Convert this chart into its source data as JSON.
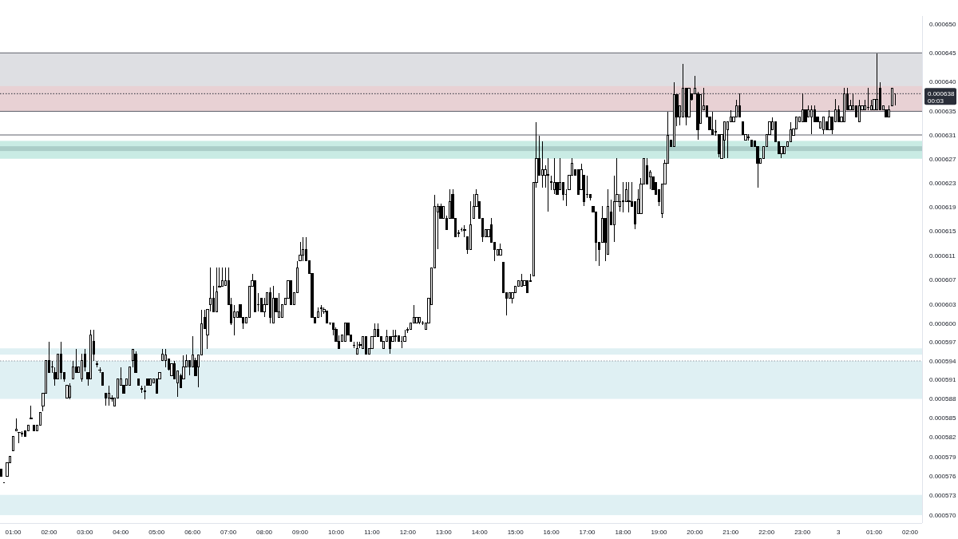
{
  "chart_data": {
    "type": "candlestick",
    "color": "#000000",
    "log": true,
    "xlim": [
      "--01-02T00:38",
      "--01-03T02:20"
    ],
    "ylim": [
      0.0005688,
      0.0006514
    ],
    "xticks": [
      {
        "value": "--01-02T01:00",
        "label": "01:00"
      },
      {
        "value": "--01-02T02:00",
        "label": "02:00"
      },
      {
        "value": "--01-02T03:00",
        "label": "03:00"
      },
      {
        "value": "--01-02T04:00",
        "label": "04:00"
      },
      {
        "value": "--01-02T05:00",
        "label": "05:00"
      },
      {
        "value": "--01-02T06:00",
        "label": "06:00"
      },
      {
        "value": "--01-02T07:00",
        "label": "07:00"
      },
      {
        "value": "--01-02T08:00",
        "label": "08:00"
      },
      {
        "value": "--01-02T09:00",
        "label": "09:00"
      },
      {
        "value": "--01-02T10:00",
        "label": "10:00"
      },
      {
        "value": "--01-02T11:00",
        "label": "11:00"
      },
      {
        "value": "--01-02T12:00",
        "label": "12:00"
      },
      {
        "value": "--01-02T13:00",
        "label": "13:00"
      },
      {
        "value": "--01-02T14:00",
        "label": "14:00"
      },
      {
        "value": "--01-02T15:00",
        "label": "15:00"
      },
      {
        "value": "--01-02T16:00",
        "label": "16:00"
      },
      {
        "value": "--01-02T17:00",
        "label": "17:00"
      },
      {
        "value": "--01-02T18:00",
        "label": "18:00"
      },
      {
        "value": "--01-02T19:00",
        "label": "19:00"
      },
      {
        "value": "--01-02T20:00",
        "label": "20:00"
      },
      {
        "value": "--01-02T21:00",
        "label": "21:00"
      },
      {
        "value": "--01-02T22:00",
        "label": "22:00"
      },
      {
        "value": "--01-02T23:00",
        "label": "23:00"
      },
      {
        "value": "--01-03T00:00",
        "label": "3"
      },
      {
        "value": "--01-03T01:00",
        "label": "01:00"
      },
      {
        "value": "--01-03T02:00",
        "label": "02:00"
      }
    ],
    "yticks": [
      {
        "value": 0.00065,
        "label": "0.000650"
      },
      0.000645,
      {
        "value": 0.00064,
        "label": "0.000640"
      },
      0.000635,
      0.000631,
      0.000627,
      0.000623,
      0.000619,
      0.000615,
      0.000611,
      0.000607,
      0.000603,
      {
        "value": 0.0006,
        "label": "0.000600"
      },
      0.000597,
      0.000594,
      0.000591,
      0.000588,
      0.000585,
      0.000582,
      0.000579,
      0.000576,
      0.000573,
      {
        "value": 0.00057,
        "label": "0.000570"
      }
    ],
    "bands": [
      {
        "axis": "y",
        "from": 0.000635,
        "to": 0.000645,
        "color": "#dedfe3"
      },
      {
        "axis": "y",
        "from": 0.000595,
        "to": 0.000596,
        "color": "#dff0f3"
      },
      {
        "axis": "y",
        "from": 0.000588,
        "to": 0.000594,
        "color": "#dff0f3"
      },
      {
        "axis": "y",
        "from": 0.00057,
        "to": 0.0005731,
        "color": "#dff0f3"
      },
      {
        "axis": "y",
        "from": 0.000635,
        "to": 0.0006393,
        "color": "#e8d1d4"
      },
      {
        "axis": "y",
        "from": 0.000627,
        "to": 0.00063,
        "color": "#c9ebe4"
      },
      {
        "axis": "y",
        "from": 0.0006283,
        "to": 0.0006291,
        "color": "#abcdc8"
      }
    ],
    "ref_lines": [
      {
        "axis": "y",
        "value": 0.000645,
        "color": "#5d606b"
      },
      {
        "axis": "y",
        "value": 0.000635,
        "color": "#5d606b"
      },
      {
        "axis": "y",
        "value": 0.000631,
        "color": "#5d606b"
      },
      {
        "axis": "y",
        "value": 0.000638,
        "label": "0.000638",
        "color": "#2a2e39",
        "line_style": "dotted"
      },
      {
        "axis": "y",
        "value": 0.000594,
        "color": "#9598a1",
        "line_style": "dotted"
      }
    ],
    "annotations": [
      "00:03"
    ],
    "x": [
      "--01-02T00:40",
      "--01-02T00:45",
      "--01-02T00:50",
      "--01-02T00:55",
      "--01-02T01:00",
      "--01-02T01:05",
      "--01-02T01:10",
      "--01-02T01:15",
      "--01-02T01:20",
      "--01-02T01:25",
      "--01-02T01:30",
      "--01-02T01:35",
      "--01-02T01:40",
      "--01-02T01:45",
      "--01-02T01:50",
      "--01-02T01:55",
      "--01-02T02:00",
      "--01-02T02:05",
      "--01-02T02:10",
      "--01-02T02:15",
      "--01-02T02:20",
      "--01-02T02:25",
      "--01-02T02:30",
      "--01-02T02:35",
      "--01-02T02:40",
      "--01-02T02:45",
      "--01-02T02:50",
      "--01-02T02:55",
      "--01-02T03:00",
      "--01-02T03:05",
      "--01-02T03:10",
      "--01-02T03:15",
      "--01-02T03:20",
      "--01-02T03:25",
      "--01-02T03:30",
      "--01-02T03:35",
      "--01-02T03:40",
      "--01-02T03:45",
      "--01-02T03:50",
      "--01-02T03:55",
      "--01-02T04:00",
      "--01-02T04:05",
      "--01-02T04:10",
      "--01-02T04:15",
      "--01-02T04:20",
      "--01-02T04:25",
      "--01-02T04:30",
      "--01-02T04:35",
      "--01-02T04:40",
      "--01-02T04:45",
      "--01-02T04:50",
      "--01-02T04:55",
      "--01-02T05:00",
      "--01-02T05:05",
      "--01-02T05:10",
      "--01-02T05:15",
      "--01-02T05:20",
      "--01-02T05:25",
      "--01-02T05:30",
      "--01-02T05:35",
      "--01-02T05:40",
      "--01-02T05:45",
      "--01-02T05:50",
      "--01-02T05:55",
      "--01-02T06:00",
      "--01-02T06:05",
      "--01-02T06:10",
      "--01-02T06:15",
      "--01-02T06:20",
      "--01-02T06:25",
      "--01-02T06:30",
      "--01-02T06:35",
      "--01-02T06:40",
      "--01-02T06:45",
      "--01-02T06:50",
      "--01-02T06:55",
      "--01-02T07:00",
      "--01-02T07:05",
      "--01-02T07:10",
      "--01-02T07:15",
      "--01-02T07:20",
      "--01-02T07:25",
      "--01-02T07:30",
      "--01-02T07:35",
      "--01-02T07:40",
      "--01-02T07:45",
      "--01-02T07:50",
      "--01-02T07:55",
      "--01-02T08:00",
      "--01-02T08:05",
      "--01-02T08:10",
      "--01-02T08:15",
      "--01-02T08:20",
      "--01-02T08:25",
      "--01-02T08:30",
      "--01-02T08:35",
      "--01-02T08:40",
      "--01-02T08:45",
      "--01-02T08:50",
      "--01-02T08:55",
      "--01-02T09:00",
      "--01-02T09:05",
      "--01-02T09:10",
      "--01-02T09:15",
      "--01-02T09:20",
      "--01-02T09:25",
      "--01-02T09:30",
      "--01-02T09:35",
      "--01-02T09:40",
      "--01-02T09:45",
      "--01-02T09:50",
      "--01-02T09:55",
      "--01-02T10:00",
      "--01-02T10:05",
      "--01-02T10:10",
      "--01-02T10:15",
      "--01-02T10:20",
      "--01-02T10:25",
      "--01-02T10:30",
      "--01-02T10:35",
      "--01-02T10:40",
      "--01-02T10:45",
      "--01-02T10:50",
      "--01-02T10:55",
      "--01-02T11:00",
      "--01-02T11:05",
      "--01-02T11:10",
      "--01-02T11:15",
      "--01-02T11:20",
      "--01-02T11:25",
      "--01-02T11:30",
      "--01-02T11:35",
      "--01-02T11:40",
      "--01-02T11:45",
      "--01-02T11:50",
      "--01-02T11:55",
      "--01-02T12:00",
      "--01-02T12:05",
      "--01-02T12:10",
      "--01-02T12:15",
      "--01-02T12:20",
      "--01-02T12:25",
      "--01-02T12:30",
      "--01-02T12:35",
      "--01-02T12:40",
      "--01-02T12:45",
      "--01-02T12:50",
      "--01-02T12:55",
      "--01-02T13:00",
      "--01-02T13:05",
      "--01-02T13:10",
      "--01-02T13:15",
      "--01-02T13:20",
      "--01-02T13:25",
      "--01-02T13:30",
      "--01-02T13:35",
      "--01-02T13:40",
      "--01-02T13:45",
      "--01-02T13:50",
      "--01-02T13:55",
      "--01-02T14:00",
      "--01-02T14:05",
      "--01-02T14:10",
      "--01-02T14:15",
      "--01-02T14:20",
      "--01-02T14:25",
      "--01-02T14:30",
      "--01-02T14:35",
      "--01-02T14:40",
      "--01-02T14:45",
      "--01-02T14:50",
      "--01-02T14:55",
      "--01-02T15:00",
      "--01-02T15:05",
      "--01-02T15:10",
      "--01-02T15:15",
      "--01-02T15:20",
      "--01-02T15:25",
      "--01-02T15:30",
      "--01-02T15:35",
      "--01-02T15:40",
      "--01-02T15:45",
      "--01-02T15:50",
      "--01-02T15:55",
      "--01-02T16:00",
      "--01-02T16:05",
      "--01-02T16:10",
      "--01-02T16:15",
      "--01-02T16:20",
      "--01-02T16:25",
      "--01-02T16:30",
      "--01-02T16:35",
      "--01-02T16:40",
      "--01-02T16:45",
      "--01-02T16:50",
      "--01-02T16:55",
      "--01-02T17:00",
      "--01-02T17:05",
      "--01-02T17:10",
      "--01-02T17:15",
      "--01-02T17:20",
      "--01-02T17:25",
      "--01-02T17:30",
      "--01-02T17:35",
      "--01-02T17:40",
      "--01-02T17:45",
      "--01-02T17:50",
      "--01-02T17:55",
      "--01-02T18:00",
      "--01-02T18:05",
      "--01-02T18:10",
      "--01-02T18:15",
      "--01-02T18:20",
      "--01-02T18:25",
      "--01-02T18:30",
      "--01-02T18:35",
      "--01-02T18:40",
      "--01-02T18:45",
      "--01-02T18:50",
      "--01-02T18:55",
      "--01-02T19:00",
      "--01-02T19:05",
      "--01-02T19:10",
      "--01-02T19:15",
      "--01-02T19:20",
      "--01-02T19:25",
      "--01-02T19:30",
      "--01-02T19:35",
      "--01-02T19:40",
      "--01-02T19:45",
      "--01-02T19:50",
      "--01-02T19:55",
      "--01-02T20:00",
      "--01-02T20:05",
      "--01-02T20:10",
      "--01-02T20:15",
      "--01-02T20:20",
      "--01-02T20:25",
      "--01-02T20:30",
      "--01-02T20:35",
      "--01-02T20:40",
      "--01-02T20:45",
      "--01-02T20:50",
      "--01-02T20:55",
      "--01-02T21:00",
      "--01-02T21:05",
      "--01-02T21:10",
      "--01-02T21:15",
      "--01-02T21:20",
      "--01-02T21:25",
      "--01-02T21:30",
      "--01-02T21:35",
      "--01-02T21:40",
      "--01-02T21:45",
      "--01-02T21:50",
      "--01-02T21:55",
      "--01-02T22:00",
      "--01-02T22:05",
      "--01-02T22:10",
      "--01-02T22:15",
      "--01-02T22:20",
      "--01-02T22:25",
      "--01-02T22:30",
      "--01-02T22:35",
      "--01-02T22:40",
      "--01-02T22:45",
      "--01-02T22:50",
      "--01-02T22:55",
      "--01-02T23:00",
      "--01-02T23:05",
      "--01-02T23:10",
      "--01-02T23:15",
      "--01-02T23:20",
      "--01-02T23:25",
      "--01-02T23:30",
      "--01-02T23:35",
      "--01-02T23:40",
      "--01-02T23:45",
      "--01-02T23:50",
      "--01-02T23:55",
      "--01-03T00:00",
      "--01-03T00:05",
      "--01-03T00:10",
      "--01-03T00:15",
      "--01-03T00:20",
      "--01-03T00:25",
      "--01-03T00:30",
      "--01-03T00:35",
      "--01-03T00:40",
      "--01-03T00:45",
      "--01-03T00:50",
      "--01-03T00:55",
      "--01-03T01:00",
      "--01-03T01:05",
      "--01-03T01:10",
      "--01-03T01:15",
      "--01-03T01:20",
      "--01-03T01:25",
      "--01-03T01:30",
      "--01-03T01:35"
    ],
    "ohlc": [
      [
        0.000577,
        0.000577,
        0.000576,
        0.000576
      ],
      [
        0.000575,
        0.000575,
        0.000575,
        0.000575
      ],
      [
        0.000576,
        0.000578,
        0.000576,
        0.000578
      ],
      [
        0.000578,
        0.000579,
        0.000578,
        0.000579
      ],
      [
        0.0005799,
        0.0005821,
        0.0005799,
        0.0005821
      ],
      [
        0.000583,
        0.0005849,
        0.000583,
        0.0005833
      ],
      [
        0.0005827,
        0.0005828,
        0.0005811,
        0.0005828
      ],
      [
        0.0005826,
        0.000583,
        0.0005821,
        0.0005825
      ],
      [
        0.000583,
        0.000583,
        0.0005821,
        0.0005821
      ],
      [
        0.000583,
        0.0005839,
        0.000583,
        0.0005839
      ],
      [
        0.0005849,
        0.0005869,
        0.0005849,
        0.000585
      ],
      [
        0.0005839,
        0.0005839,
        0.000583,
        0.000583
      ],
      [
        0.000583,
        0.0005839,
        0.000583,
        0.0005839
      ],
      [
        0.0005839,
        0.0005859,
        0.0005839,
        0.0005859
      ],
      [
        0.0005869,
        0.0005889,
        0.0005861,
        0.0005889
      ],
      [
        0.0005889,
        0.000594,
        0.0005889,
        0.000594
      ],
      [
        0.000594,
        0.0005971,
        0.0005921,
        0.0005921
      ],
      [
        0.000593,
        0.000594,
        0.0005921,
        0.0005931
      ],
      [
        0.0005921,
        0.000593,
        0.0005901,
        0.0005911
      ],
      [
        0.0005911,
        0.0005951,
        0.0005911,
        0.0005951
      ],
      [
        0.0005951,
        0.0005971,
        0.0005911,
        0.0005921
      ],
      [
        0.0005921,
        0.0005921,
        0.0005907,
        0.0005911
      ],
      [
        0.0005881,
        0.0005901,
        0.0005881,
        0.0005901
      ],
      [
        0.0005882,
        0.0005905,
        0.0005879,
        0.00059
      ],
      [
        0.0005911,
        0.000594,
        0.0005911,
        0.000593
      ],
      [
        0.000593,
        0.0005959,
        0.0005921,
        0.0005921
      ],
      [
        0.0005921,
        0.000593,
        0.0005921,
        0.000593
      ],
      [
        0.0005911,
        0.0005951,
        0.0005907,
        0.000594
      ],
      [
        0.0005951,
        0.0005959,
        0.0005924,
        0.000593
      ],
      [
        0.0005921,
        0.0005921,
        0.0005901,
        0.0005911
      ],
      [
        0.0005911,
        0.000599,
        0.0005911,
        0.0005981
      ],
      [
        0.0005971,
        0.000599,
        0.000594,
        0.0005951
      ],
      [
        0.0005935,
        0.000594,
        0.000593,
        0.0005934
      ],
      [
        0.0005926,
        0.000593,
        0.0005921,
        0.0005925
      ],
      [
        0.0005921,
        0.0005921,
        0.0005901,
        0.0005901
      ],
      [
        0.0005889,
        0.0005889,
        0.000587,
        0.0005881
      ],
      [
        0.0005881,
        0.0005901,
        0.000587,
        0.0005889
      ],
      [
        0.0005881,
        0.0005886,
        0.0005876,
        0.000588
      ],
      [
        0.0005869,
        0.0005881,
        0.0005869,
        0.0005881
      ],
      [
        0.0005881,
        0.0005911,
        0.0005881,
        0.0005911
      ],
      [
        0.0005901,
        0.000593,
        0.0005901,
        0.0005911
      ],
      [
        0.0005901,
        0.0005901,
        0.0005889,
        0.0005889
      ],
      [
        0.0005901,
        0.0005911,
        0.0005901,
        0.0005911
      ],
      [
        0.0005901,
        0.000593,
        0.0005901,
        0.000593
      ],
      [
        0.000594,
        0.0005959,
        0.000593,
        0.0005959
      ],
      [
        0.0005951,
        0.0005955,
        0.0005921,
        0.0005921
      ],
      [
        0.0005911,
        0.0005911,
        0.0005901,
        0.0005901
      ],
      [
        0.0005896,
        0.0005901,
        0.0005889,
        0.0005895
      ],
      [
        0.0005892,
        0.0005901,
        0.000588,
        0.0005891
      ],
      [
        0.0005911,
        0.0005911,
        0.0005901,
        0.0005901
      ],
      [
        0.0005901,
        0.0005911,
        0.0005901,
        0.0005911
      ],
      [
        0.0005905,
        0.0005911,
        0.0005905,
        0.0005911
      ],
      [
        0.0005911,
        0.0005911,
        0.0005889,
        0.0005889
      ],
      [
        0.0005911,
        0.0005921,
        0.0005911,
        0.0005921
      ],
      [
        0.000594,
        0.0005959,
        0.000594,
        0.0005951
      ],
      [
        0.000594,
        0.0005959,
        0.000593,
        0.0005949
      ],
      [
        0.0005943,
        0.0005943,
        0.0005925,
        0.0005927
      ],
      [
        0.0005917,
        0.0005936,
        0.0005917,
        0.0005936
      ],
      [
        0.0005936,
        0.000594,
        0.0005911,
        0.0005911
      ],
      [
        0.0005905,
        0.0005924,
        0.0005883,
        0.0005924
      ],
      [
        0.0005917,
        0.000592,
        0.0005898,
        0.0005898
      ],
      [
        0.0005911,
        0.0005949,
        0.0005911,
        0.000593
      ],
      [
        0.000593,
        0.000595,
        0.000593,
        0.000594
      ],
      [
        0.000594,
        0.000594,
        0.0005917,
        0.000593
      ],
      [
        0.000593,
        0.0005979,
        0.000593,
        0.0005949
      ],
      [
        0.000594,
        0.0005945,
        0.0005917,
        0.0005917
      ],
      [
        0.000593,
        0.000595,
        0.0005898,
        0.000595
      ],
      [
        0.000595,
        0.0006022,
        0.000595,
        0.0005999
      ],
      [
        0.000601,
        0.0006022,
        0.0005991,
        0.0005991
      ],
      [
        0.0005981,
        0.0006022,
        0.0005959,
        0.0006022
      ],
      [
        0.000603,
        0.000609,
        0.0006019,
        0.000604
      ],
      [
        0.000604,
        0.000606,
        0.0006019,
        0.0006019
      ],
      [
        0.0006019,
        0.000609,
        0.0006019,
        0.0006051
      ],
      [
        0.0006058,
        0.000609,
        0.0006058,
        0.000606
      ],
      [
        0.000606,
        0.000609,
        0.000606,
        0.0006069
      ],
      [
        0.0006061,
        0.000609,
        0.0006061,
        0.0006069
      ],
      [
        0.0006069,
        0.000609,
        0.000603,
        0.000603
      ],
      [
        0.000603,
        0.0006041,
        0.0005997,
        0.0006
      ],
      [
        0.000601,
        0.000603,
        0.0005981,
        0.0006019
      ],
      [
        0.000601,
        0.0006019,
        0.000601,
        0.0006019
      ],
      [
        0.000603,
        0.000603,
        0.000601,
        0.000601
      ],
      [
        0.000601,
        0.000601,
        0.0005991,
        0.0006
      ],
      [
        0.0006,
        0.000601,
        0.0006,
        0.000601
      ],
      [
        0.000601,
        0.000606,
        0.000601,
        0.000606
      ],
      [
        0.000606,
        0.000608,
        0.000606,
        0.0006069
      ],
      [
        0.0006069,
        0.0006069,
        0.0006019,
        0.0006019
      ],
      [
        0.000603,
        0.0006049,
        0.0006019,
        0.000603
      ],
      [
        0.000604,
        0.000604,
        0.0006019,
        0.0006019
      ],
      [
        0.0006019,
        0.0006041,
        0.000601,
        0.000603
      ],
      [
        0.000603,
        0.000605,
        0.000603,
        0.000605
      ],
      [
        0.000605,
        0.0006058,
        0.0006,
        0.000601
      ],
      [
        0.0006,
        0.000606,
        0.0006,
        0.000604
      ],
      [
        0.000604,
        0.000604,
        0.0006019,
        0.0006019
      ],
      [
        0.000601,
        0.0006049,
        0.000601,
        0.0006019
      ],
      [
        0.000601,
        0.000603,
        0.000601,
        0.000603
      ],
      [
        0.000603,
        0.000604,
        0.000603,
        0.000604
      ],
      [
        0.000604,
        0.0006069,
        0.000604,
        0.0006069
      ],
      [
        0.0006069,
        0.0006069,
        0.000603,
        0.000603
      ],
      [
        0.000603,
        0.000605,
        0.000603,
        0.000605
      ],
      [
        0.000605,
        0.0006101,
        0.000605,
        0.000609
      ],
      [
        0.0006101,
        0.0006132,
        0.0006101,
        0.0006111
      ],
      [
        0.0006111,
        0.000614,
        0.0006101,
        0.000612
      ],
      [
        0.000612,
        0.000614,
        0.0006101,
        0.0006101
      ],
      [
        0.0006101,
        0.0006101,
        0.0006081,
        0.0006081
      ],
      [
        0.0006081,
        0.0006081,
        0.000601,
        0.000601
      ],
      [
        0.000601,
        0.000601,
        0.0006,
        0.0006
      ],
      [
        0.000601,
        0.0006026,
        0.000601,
        0.0006019
      ],
      [
        0.0006024,
        0.000603,
        0.000601,
        0.0006025
      ],
      [
        0.0006019,
        0.0006026,
        0.0006015,
        0.0006022
      ],
      [
        0.000602,
        0.000602,
        0.0006,
        0.0006
      ],
      [
        0.0006,
        0.0006001,
        0.0005997,
        0.0006001
      ],
      [
        0.0006,
        0.0006,
        0.0005981,
        0.000599
      ],
      [
        0.000599,
        0.0005993,
        0.0005971,
        0.0005971
      ],
      [
        0.0005971,
        0.0005981,
        0.000596,
        0.000596
      ],
      [
        0.0005971,
        0.0005981,
        0.0005971,
        0.0005981
      ],
      [
        0.0005971,
        0.0006,
        0.0005971,
        0.0006
      ],
      [
        0.0006,
        0.0006,
        0.0005981,
        0.0005981
      ],
      [
        0.0005981,
        0.0005981,
        0.0005971,
        0.0005971
      ],
      [
        0.0005965,
        0.0005971,
        0.000596,
        0.0005965
      ],
      [
        0.0005951,
        0.0005971,
        0.0005951,
        0.000596
      ],
      [
        0.0005965,
        0.0005971,
        0.000596,
        0.0005966
      ],
      [
        0.000596,
        0.0005979,
        0.000596,
        0.0005979
      ],
      [
        0.0005979,
        0.0005979,
        0.0005951,
        0.0005951
      ],
      [
        0.0005951,
        0.000596,
        0.0005951,
        0.000596
      ],
      [
        0.000596,
        0.0005979,
        0.000596,
        0.0005979
      ],
      [
        0.0005979,
        0.0006,
        0.0005979,
        0.000599
      ],
      [
        0.000599,
        0.0006,
        0.0005979,
        0.0005979
      ],
      [
        0.0005979,
        0.0005979,
        0.0005971,
        0.0005971
      ],
      [
        0.000596,
        0.0005971,
        0.000596,
        0.0005971
      ],
      [
        0.0005971,
        0.000599,
        0.0005971,
        0.0005979
      ],
      [
        0.0005979,
        0.0005979,
        0.0005951,
        0.000596
      ],
      [
        0.0005971,
        0.000599,
        0.0005971,
        0.0005979
      ],
      [
        0.0005979,
        0.000599,
        0.0005971,
        0.000598
      ],
      [
        0.000598,
        0.000598,
        0.0005971,
        0.0005971
      ],
      [
        0.0005971,
        0.0005979,
        0.000596,
        0.0005971
      ],
      [
        0.0005971,
        0.000599,
        0.0005971,
        0.0005979
      ],
      [
        0.000599,
        0.0005994,
        0.0005984,
        0.0005989
      ],
      [
        0.000599,
        0.0006,
        0.000599,
        0.0006
      ],
      [
        0.0006,
        0.000603,
        0.0006,
        0.000601
      ],
      [
        0.0006001,
        0.000601,
        0.0006001,
        0.000601
      ],
      [
        0.0006002,
        0.000601,
        0.0005999,
        0.000601
      ],
      [
        0.0006001,
        0.0006004,
        0.0005997,
        0.0006
      ],
      [
        0.000599,
        0.0006,
        0.000599,
        0.0006
      ],
      [
        0.0006,
        0.000604,
        0.0006,
        0.000604
      ],
      [
        0.000603,
        0.000609,
        0.000603,
        0.000609
      ],
      [
        0.000609,
        0.000621,
        0.000609,
        0.000619
      ],
      [
        0.0006181,
        0.0006195,
        0.000612,
        0.000619
      ],
      [
        0.000619,
        0.0006195,
        0.0006171,
        0.0006171
      ],
      [
        0.0006171,
        0.000619,
        0.0006171,
        0.000619
      ],
      [
        0.0006171,
        0.0006175,
        0.0006152,
        0.0006152
      ],
      [
        0.0006171,
        0.0006219,
        0.0006171,
        0.0006199
      ],
      [
        0.0006211,
        0.0006219,
        0.0006171,
        0.0006171
      ],
      [
        0.0006171,
        0.0006171,
        0.000614,
        0.000614
      ],
      [
        0.0006146,
        0.0006152,
        0.000614,
        0.0006147
      ],
      [
        0.0006152,
        0.0006155,
        0.0006149,
        0.0006152
      ],
      [
        0.0006152,
        0.000616,
        0.000614,
        0.0006151
      ],
      [
        0.000614,
        0.000614,
        0.0006112,
        0.000612
      ],
      [
        0.000612,
        0.0006199,
        0.000612,
        0.000616
      ],
      [
        0.0006171,
        0.0006211,
        0.0006171,
        0.000619
      ],
      [
        0.000619,
        0.0006219,
        0.000619,
        0.0006211
      ],
      [
        0.0006199,
        0.0006199,
        0.0006171,
        0.0006171
      ],
      [
        0.0006171,
        0.0006171,
        0.0006132,
        0.000614
      ],
      [
        0.000614,
        0.0006152,
        0.000614,
        0.0006152
      ],
      [
        0.0006141,
        0.0006152,
        0.0006141,
        0.0006152
      ],
      [
        0.000616,
        0.0006171,
        0.0006131,
        0.0006131
      ],
      [
        0.0006131,
        0.0006131,
        0.0006101,
        0.000612
      ],
      [
        0.000611,
        0.000612,
        0.000611,
        0.000612
      ],
      [
        0.000611,
        0.0006129,
        0.000611,
        0.000612
      ],
      [
        0.0006099,
        0.0006099,
        0.000605,
        0.000605
      ],
      [
        0.000605,
        0.000605,
        0.0006013,
        0.0006041
      ],
      [
        0.0006041,
        0.000605,
        0.0006041,
        0.000605
      ],
      [
        0.0006041,
        0.000605,
        0.0006032,
        0.000605
      ],
      [
        0.000605,
        0.000606,
        0.000605,
        0.000606
      ],
      [
        0.000606,
        0.0006069,
        0.000606,
        0.0006069
      ],
      [
        0.000606,
        0.000608,
        0.000606,
        0.0006069
      ],
      [
        0.0006061,
        0.0006069,
        0.0006061,
        0.0006069
      ],
      [
        0.0006069,
        0.0006069,
        0.000605,
        0.000605
      ],
      [
        0.0006067,
        0.000608,
        0.0006067,
        0.0006069
      ],
      [
        0.0006077,
        0.0006231,
        0.0006077,
        0.0006231
      ],
      [
        0.0006231,
        0.0006332,
        0.0006222,
        0.0006271
      ],
      [
        0.0006271,
        0.0006309,
        0.0006242,
        0.0006242
      ],
      [
        0.0006242,
        0.0006299,
        0.0006222,
        0.0006251
      ],
      [
        0.0006242,
        0.0006259,
        0.0006222,
        0.0006251
      ],
      [
        0.0006242,
        0.0006271,
        0.0006182,
        0.0006243
      ],
      [
        0.0006231,
        0.0006242,
        0.0006218,
        0.0006232
      ],
      [
        0.0006219,
        0.0006271,
        0.0006211,
        0.0006231
      ],
      [
        0.0006231,
        0.0006231,
        0.0006211,
        0.0006211
      ],
      [
        0.0006219,
        0.0006271,
        0.0006219,
        0.0006231
      ],
      [
        0.0006231,
        0.0006231,
        0.00062,
        0.0006211
      ],
      [
        0.0006211,
        0.0006219,
        0.0006191,
        0.0006211
      ],
      [
        0.0006219,
        0.0006242,
        0.0006219,
        0.0006242
      ],
      [
        0.0006242,
        0.0006271,
        0.0006242,
        0.0006262
      ],
      [
        0.0006251,
        0.0006251,
        0.0006242,
        0.0006242
      ],
      [
        0.0006251,
        0.0006251,
        0.0006211,
        0.0006211
      ],
      [
        0.0006219,
        0.0006262,
        0.0006219,
        0.0006251
      ],
      [
        0.0006242,
        0.0006242,
        0.0006191,
        0.0006199
      ],
      [
        0.000621,
        0.0006242,
        0.0006205,
        0.0006211
      ],
      [
        0.0006211,
        0.0006211,
        0.00062,
        0.0006205
      ],
      [
        0.0006191,
        0.0006191,
        0.0006181,
        0.0006181
      ],
      [
        0.0006181,
        0.0006181,
        0.0006101,
        0.0006131
      ],
      [
        0.0006131,
        0.0006131,
        0.0006093,
        0.000612
      ],
      [
        0.0006131,
        0.0006191,
        0.0006131,
        0.0006171
      ],
      [
        0.0006171,
        0.0006171,
        0.0006101,
        0.0006131
      ],
      [
        0.0006112,
        0.0006219,
        0.0006112,
        0.0006191
      ],
      [
        0.0006181,
        0.0006202,
        0.000616,
        0.000616
      ],
      [
        0.000616,
        0.0006242,
        0.0006132,
        0.0006199
      ],
      [
        0.0006199,
        0.0006271,
        0.0006199,
        0.0006211
      ],
      [
        0.0006191,
        0.0006211,
        0.0006182,
        0.0006199
      ],
      [
        0.0006199,
        0.0006231,
        0.0006181,
        0.00062
      ],
      [
        0.0006199,
        0.0006231,
        0.0006199,
        0.0006219
      ],
      [
        0.00062,
        0.0006231,
        0.0006181,
        0.0006199
      ],
      [
        0.0006199,
        0.0006231,
        0.0006191,
        0.0006191
      ],
      [
        0.0006199,
        0.0006199,
        0.0006153,
        0.0006162
      ],
      [
        0.0006179,
        0.0006219,
        0.0006179,
        0.0006202
      ],
      [
        0.0006179,
        0.0006238,
        0.0006179,
        0.0006228
      ],
      [
        0.0006228,
        0.0006271,
        0.0006228,
        0.0006271
      ],
      [
        0.0006259,
        0.0006271,
        0.0006228,
        0.0006228
      ],
      [
        0.0006239,
        0.0006251,
        0.0006219,
        0.0006248
      ],
      [
        0.0006239,
        0.0006239,
        0.0006219,
        0.0006219
      ],
      [
        0.0006231,
        0.0006231,
        0.0006211,
        0.0006211
      ],
      [
        0.0006219,
        0.0006219,
        0.0006191,
        0.0006199
      ],
      [
        0.0006179,
        0.0006228,
        0.0006171,
        0.0006228
      ],
      [
        0.0006228,
        0.0006268,
        0.0006228,
        0.0006262
      ],
      [
        0.0006262,
        0.0006349,
        0.0006262,
        0.0006309
      ],
      [
        0.0006301,
        0.0006301,
        0.0006291,
        0.0006291
      ],
      [
        0.0006291,
        0.00064,
        0.0006291,
        0.0006379
      ],
      [
        0.0006379,
        0.0006379,
        0.0006325,
        0.0006341
      ],
      [
        0.0006341,
        0.000636,
        0.0006326,
        0.000636
      ],
      [
        0.0006341,
        0.0006431,
        0.0006341,
        0.000639
      ],
      [
        0.000639,
        0.000639,
        0.0006326,
        0.0006341
      ],
      [
        0.0006341,
        0.000639,
        0.0006341,
        0.000639
      ],
      [
        0.000638,
        0.000638,
        0.0006368,
        0.000637
      ],
      [
        0.000638,
        0.000641,
        0.000638,
        0.000639
      ],
      [
        0.000638,
        0.0006383,
        0.0006302,
        0.0006319
      ],
      [
        0.0006329,
        0.0006379,
        0.0006329,
        0.0006379
      ],
      [
        0.0006352,
        0.000639,
        0.0006352,
        0.000636
      ],
      [
        0.000636,
        0.000636,
        0.000634,
        0.000634
      ],
      [
        0.000634,
        0.000634,
        0.0006319,
        0.0006319
      ],
      [
        0.0006319,
        0.0006349,
        0.0006311,
        0.0006311
      ],
      [
        0.0006315,
        0.0006336,
        0.0006309,
        0.0006316
      ],
      [
        0.0006311,
        0.0006311,
        0.0006272,
        0.0006279
      ],
      [
        0.0006271,
        0.0006311,
        0.0006271,
        0.0006311
      ],
      [
        0.0006301,
        0.0006332,
        0.0006271,
        0.0006332
      ],
      [
        0.0006319,
        0.0006332,
        0.0006271,
        0.0006332
      ],
      [
        0.0006332,
        0.0006352,
        0.0006332,
        0.000634
      ],
      [
        0.0006332,
        0.000634,
        0.0006332,
        0.000634
      ],
      [
        0.000634,
        0.000637,
        0.000634,
        0.000636
      ],
      [
        0.000636,
        0.000638,
        0.000634,
        0.000634
      ],
      [
        0.0006332,
        0.0006332,
        0.0006311,
        0.0006311
      ],
      [
        0.0006301,
        0.0006311,
        0.0006301,
        0.0006311
      ],
      [
        0.0006306,
        0.0006311,
        0.00063,
        0.0006305
      ],
      [
        0.0006301,
        0.0006301,
        0.0006291,
        0.0006291
      ],
      [
        0.00063,
        0.00063,
        0.0006291,
        0.0006291
      ],
      [
        0.0006291,
        0.0006291,
        0.0006222,
        0.0006262
      ],
      [
        0.0006262,
        0.0006271,
        0.0006262,
        0.0006271
      ],
      [
        0.0006271,
        0.0006291,
        0.0006271,
        0.0006291
      ],
      [
        0.0006291,
        0.0006311,
        0.0006291,
        0.0006311
      ],
      [
        0.0006311,
        0.0006332,
        0.0006311,
        0.0006332
      ],
      [
        0.0006319,
        0.000634,
        0.0006319,
        0.0006332
      ],
      [
        0.0006332,
        0.0006332,
        0.0006299,
        0.0006299
      ],
      [
        0.0006299,
        0.0006299,
        0.0006279,
        0.0006279
      ],
      [
        0.0006279,
        0.0006291,
        0.0006271,
        0.0006291
      ],
      [
        0.0006279,
        0.0006291,
        0.0006279,
        0.0006291
      ],
      [
        0.0006291,
        0.0006299,
        0.0006291,
        0.0006299
      ],
      [
        0.0006299,
        0.0006332,
        0.0006299,
        0.0006319
      ],
      [
        0.0006309,
        0.000632,
        0.0006309,
        0.000632
      ],
      [
        0.000632,
        0.000634,
        0.000632,
        0.000634
      ],
      [
        0.0006332,
        0.000634,
        0.0006332,
        0.000634
      ],
      [
        0.0006332,
        0.000638,
        0.0006332,
        0.0006352
      ],
      [
        0.0006352,
        0.0006352,
        0.0006332,
        0.0006332
      ],
      [
        0.000634,
        0.000636,
        0.000634,
        0.0006352
      ],
      [
        0.000634,
        0.000636,
        0.0006311,
        0.0006352
      ],
      [
        0.0006352,
        0.000636,
        0.0006332,
        0.0006332
      ],
      [
        0.000634,
        0.000634,
        0.0006332,
        0.0006332
      ],
      [
        0.0006321,
        0.0006332,
        0.0006321,
        0.0006332
      ],
      [
        0.0006319,
        0.000634,
        0.0006311,
        0.000634
      ],
      [
        0.0006332,
        0.0006332,
        0.0006319,
        0.0006319
      ],
      [
        0.0006319,
        0.0006352,
        0.0006319,
        0.000634
      ],
      [
        0.000634,
        0.000634,
        0.0006311,
        0.0006319
      ],
      [
        0.0006332,
        0.0006371,
        0.0006332,
        0.0006352
      ],
      [
        0.0006352,
        0.000636,
        0.0006332,
        0.0006332
      ],
      [
        0.0006332,
        0.000634,
        0.0006332,
        0.000634
      ],
      [
        0.0006332,
        0.000639,
        0.0006332,
        0.000638
      ],
      [
        0.000638,
        0.000639,
        0.0006352,
        0.0006352
      ],
      [
        0.0006352,
        0.000637,
        0.0006352,
        0.000636
      ],
      [
        0.0006352,
        0.000638,
        0.0006352,
        0.000636
      ],
      [
        0.000636,
        0.000636,
        0.000634,
        0.000634
      ],
      [
        0.0006332,
        0.000637,
        0.0006332,
        0.000636
      ],
      [
        0.0006352,
        0.000636,
        0.0006352,
        0.000636
      ],
      [
        0.0006352,
        0.000637,
        0.0006352,
        0.000636
      ],
      [
        0.0006356,
        0.000639,
        0.0006352,
        0.0006357
      ],
      [
        0.0006352,
        0.000637,
        0.0006352,
        0.000636
      ],
      [
        0.0006352,
        0.000637,
        0.0006352,
        0.000637
      ],
      [
        0.0006352,
        0.0006449,
        0.0006352,
        0.000637
      ],
      [
        0.000639,
        0.00064,
        0.0006352,
        0.0006352
      ],
      [
        0.0006352,
        0.000636,
        0.0006352,
        0.000636
      ],
      [
        0.0006352,
        0.0006352,
        0.000634,
        0.000634
      ],
      [
        0.000634,
        0.000636,
        0.000634,
        0.0006352
      ],
      [
        0.000636,
        0.000639,
        0.000636,
        0.000639
      ],
      [
        0.000638,
        0.000638,
        0.000636,
        0.000638
      ]
    ]
  }
}
